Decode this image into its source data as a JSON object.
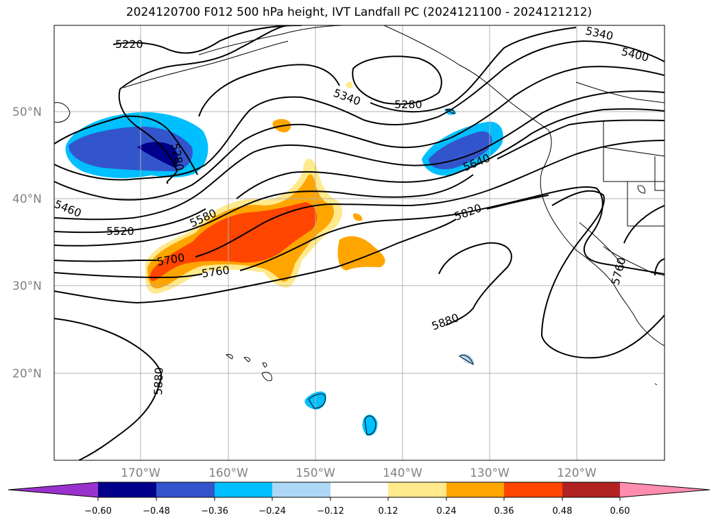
{
  "title": "2024120700 F012 500 hPa height, IVT Landfall PC (2024121100 - 2024121212)",
  "map": {
    "lat_labels": [
      "50°N",
      "40°N",
      "30°N",
      "20°N"
    ],
    "lon_labels": [
      "170°W",
      "160°W",
      "150°W",
      "140°W",
      "130°W",
      "120°W"
    ],
    "contour_labels": [
      "5220",
      "5280",
      "5340",
      "5340",
      "5400",
      "5280",
      "5460",
      "5520",
      "5580",
      "5640",
      "5700",
      "5760",
      "5820",
      "5880",
      "5880",
      "5760"
    ]
  },
  "colorbar": {
    "ticks": [
      "−0.60",
      "−0.48",
      "−0.36",
      "−0.24",
      "−0.12",
      "0.12",
      "0.24",
      "0.36",
      "0.48",
      "0.60"
    ],
    "colors": [
      "#9932cc",
      "#00008b",
      "#3355cc",
      "#00bfff",
      "#add8f5",
      "#ffffff",
      "#ffe98c",
      "#ffa500",
      "#ff4500",
      "#b22222",
      "#ff8db0"
    ]
  }
}
